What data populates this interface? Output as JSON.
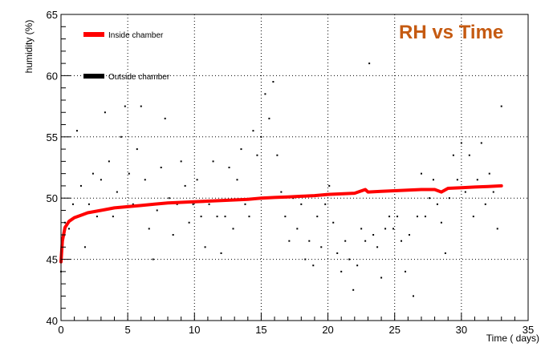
{
  "chart_data": {
    "type": "line",
    "title": "RH vs Time",
    "xlabel": "Time ( days)",
    "ylabel": "humidity (%)",
    "xlim": [
      0,
      35
    ],
    "ylim": [
      40,
      65
    ],
    "x_ticks": [
      0,
      5,
      10,
      15,
      20,
      25,
      30,
      35
    ],
    "y_ticks": [
      40,
      45,
      50,
      55,
      60,
      65
    ],
    "grid": true,
    "legend_position": "top-left",
    "series": [
      {
        "name": "Inside chamber",
        "style": "line",
        "color": "#ff0000",
        "x": [
          0,
          0.1,
          0.3,
          0.6,
          1,
          1.5,
          2,
          3,
          4,
          5,
          6,
          7,
          8,
          9,
          10,
          11,
          12,
          13,
          14,
          15,
          16,
          17,
          18,
          19,
          20,
          21,
          22,
          22.8,
          23,
          24,
          25,
          26,
          27,
          28,
          28.5,
          29,
          30,
          31,
          32,
          33
        ],
        "y": [
          44.8,
          46.5,
          47.6,
          48.1,
          48.4,
          48.6,
          48.8,
          49.0,
          49.2,
          49.3,
          49.4,
          49.5,
          49.6,
          49.65,
          49.7,
          49.75,
          49.8,
          49.85,
          49.9,
          50.0,
          50.05,
          50.1,
          50.15,
          50.2,
          50.3,
          50.35,
          50.4,
          50.7,
          50.5,
          50.55,
          50.6,
          50.65,
          50.7,
          50.7,
          50.5,
          50.8,
          50.85,
          50.9,
          50.95,
          51.0
        ]
      },
      {
        "name": "Outside chamber",
        "style": "scatter",
        "color": "#000000",
        "x": [
          0,
          0.3,
          0.6,
          0.9,
          1.2,
          1.5,
          1.8,
          2.1,
          2.4,
          2.7,
          3.0,
          3.3,
          3.6,
          3.9,
          4.2,
          4.5,
          4.8,
          5.1,
          5.4,
          5.7,
          6.0,
          6.3,
          6.6,
          6.9,
          7.2,
          7.5,
          7.8,
          8.1,
          8.4,
          8.7,
          9.0,
          9.3,
          9.6,
          9.9,
          10.2,
          10.5,
          10.8,
          11.1,
          11.4,
          11.7,
          12.0,
          12.3,
          12.6,
          12.9,
          13.2,
          13.5,
          13.8,
          14.1,
          14.4,
          14.7,
          15.0,
          15.3,
          15.6,
          15.9,
          16.2,
          16.5,
          16.8,
          17.1,
          17.4,
          17.7,
          18.0,
          18.3,
          18.6,
          18.9,
          19.2,
          19.5,
          19.8,
          20.1,
          20.4,
          20.7,
          21.0,
          21.3,
          21.6,
          21.9,
          22.2,
          22.5,
          22.8,
          23.1,
          23.4,
          23.7,
          24.0,
          24.3,
          24.6,
          24.9,
          25.2,
          25.5,
          25.8,
          26.1,
          26.4,
          26.7,
          27.0,
          27.3,
          27.6,
          27.9,
          28.2,
          28.5,
          28.8,
          29.1,
          29.4,
          29.7,
          30.0,
          30.3,
          30.6,
          30.9,
          31.2,
          31.5,
          31.8,
          32.1,
          32.4,
          32.7,
          33.0
        ],
        "y": [
          44.0,
          48.0,
          47.5,
          49.5,
          55.5,
          51.0,
          46.0,
          49.5,
          52.0,
          48.5,
          51.5,
          57.0,
          53.0,
          48.5,
          50.5,
          55.0,
          57.5,
          52.0,
          49.5,
          54.0,
          57.5,
          51.5,
          47.5,
          45.0,
          49.0,
          52.5,
          56.5,
          50.0,
          47.0,
          49.5,
          53.0,
          51.0,
          48.0,
          49.5,
          51.5,
          48.5,
          46.0,
          49.5,
          53.0,
          48.5,
          45.5,
          48.5,
          52.5,
          47.5,
          51.5,
          54.0,
          49.5,
          48.5,
          55.5,
          53.5,
          55.0,
          58.5,
          56.5,
          59.5,
          53.5,
          50.5,
          48.5,
          46.5,
          50.0,
          47.5,
          49.5,
          45.0,
          46.5,
          44.5,
          48.5,
          46.0,
          49.5,
          51.0,
          48.0,
          45.5,
          44.0,
          46.5,
          45.0,
          42.5,
          44.5,
          47.5,
          46.5,
          61.0,
          47.0,
          46.0,
          43.5,
          47.5,
          48.5,
          47.5,
          48.5,
          46.5,
          44.0,
          47.0,
          42.0,
          48.5,
          52.0,
          48.5,
          50.0,
          51.5,
          49.5,
          48.0,
          45.5,
          50.0,
          53.5,
          51.5,
          54.5,
          50.5,
          53.5,
          48.5,
          51.5,
          54.5,
          49.5,
          52.0,
          50.5,
          47.5,
          57.5
        ]
      }
    ]
  }
}
